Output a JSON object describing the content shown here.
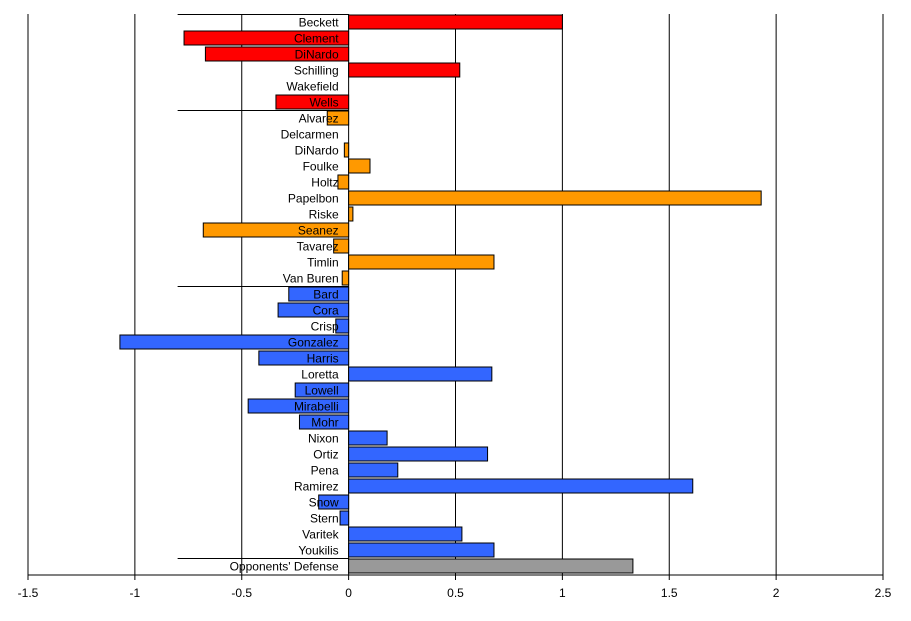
{
  "chart_data": {
    "type": "bar",
    "orientation": "horizontal",
    "title": "",
    "xlabel": "",
    "ylabel": "",
    "xlim": [
      -1.5,
      2.5
    ],
    "x_ticks": [
      -1.5,
      -1,
      -0.5,
      0,
      0.5,
      1,
      1.5,
      2,
      2.5
    ],
    "x_tick_labels": [
      "-1.5",
      "-1",
      "-0.5",
      "0",
      "0.5",
      "1",
      "1.5",
      "2",
      "2.5"
    ],
    "grid": "vertical",
    "legend": "none",
    "group_colors": {
      "starters": "#ff0000",
      "relievers": "#ff9900",
      "hitters": "#3366ff",
      "defense": "#999999"
    },
    "bars": [
      {
        "label": "Beckett",
        "value": 1.0,
        "group": "starters"
      },
      {
        "label": "Clement",
        "value": -0.77,
        "group": "starters"
      },
      {
        "label": "DiNardo",
        "value": -0.67,
        "group": "starters"
      },
      {
        "label": "Schilling",
        "value": 0.52,
        "group": "starters"
      },
      {
        "label": "Wakefield",
        "value": 0.0,
        "group": "starters"
      },
      {
        "label": "Wells",
        "value": -0.34,
        "group": "starters"
      },
      {
        "label": "Alvarez",
        "value": -0.1,
        "group": "relievers"
      },
      {
        "label": "Delcarmen",
        "value": 0.0,
        "group": "relievers"
      },
      {
        "label": "DiNardo",
        "value": -0.02,
        "group": "relievers"
      },
      {
        "label": "Foulke",
        "value": 0.1,
        "group": "relievers"
      },
      {
        "label": "Holtz",
        "value": -0.05,
        "group": "relievers"
      },
      {
        "label": "Papelbon",
        "value": 1.93,
        "group": "relievers"
      },
      {
        "label": "Riske",
        "value": 0.02,
        "group": "relievers"
      },
      {
        "label": "Seanez",
        "value": -0.68,
        "group": "relievers"
      },
      {
        "label": "Tavarez",
        "value": -0.07,
        "group": "relievers"
      },
      {
        "label": "Timlin",
        "value": 0.68,
        "group": "relievers"
      },
      {
        "label": "Van Buren",
        "value": -0.03,
        "group": "relievers"
      },
      {
        "label": "Bard",
        "value": -0.28,
        "group": "hitters"
      },
      {
        "label": "Cora",
        "value": -0.33,
        "group": "hitters"
      },
      {
        "label": "Crisp",
        "value": -0.06,
        "group": "hitters"
      },
      {
        "label": "Gonzalez",
        "value": -1.07,
        "group": "hitters"
      },
      {
        "label": "Harris",
        "value": -0.42,
        "group": "hitters"
      },
      {
        "label": "Loretta",
        "value": 0.67,
        "group": "hitters"
      },
      {
        "label": "Lowell",
        "value": -0.25,
        "group": "hitters"
      },
      {
        "label": "Mirabelli",
        "value": -0.47,
        "group": "hitters"
      },
      {
        "label": "Mohr",
        "value": -0.23,
        "group": "hitters"
      },
      {
        "label": "Nixon",
        "value": 0.18,
        "group": "hitters"
      },
      {
        "label": "Ortiz",
        "value": 0.65,
        "group": "hitters"
      },
      {
        "label": "Pena",
        "value": 0.23,
        "group": "hitters"
      },
      {
        "label": "Ramirez",
        "value": 1.61,
        "group": "hitters"
      },
      {
        "label": "Snow",
        "value": -0.14,
        "group": "hitters"
      },
      {
        "label": "Stern",
        "value": -0.04,
        "group": "hitters"
      },
      {
        "label": "Varitek",
        "value": 0.53,
        "group": "hitters"
      },
      {
        "label": "Youkilis",
        "value": 0.68,
        "group": "hitters"
      },
      {
        "label": "Opponents' Defense",
        "value": 1.33,
        "group": "defense"
      }
    ]
  }
}
